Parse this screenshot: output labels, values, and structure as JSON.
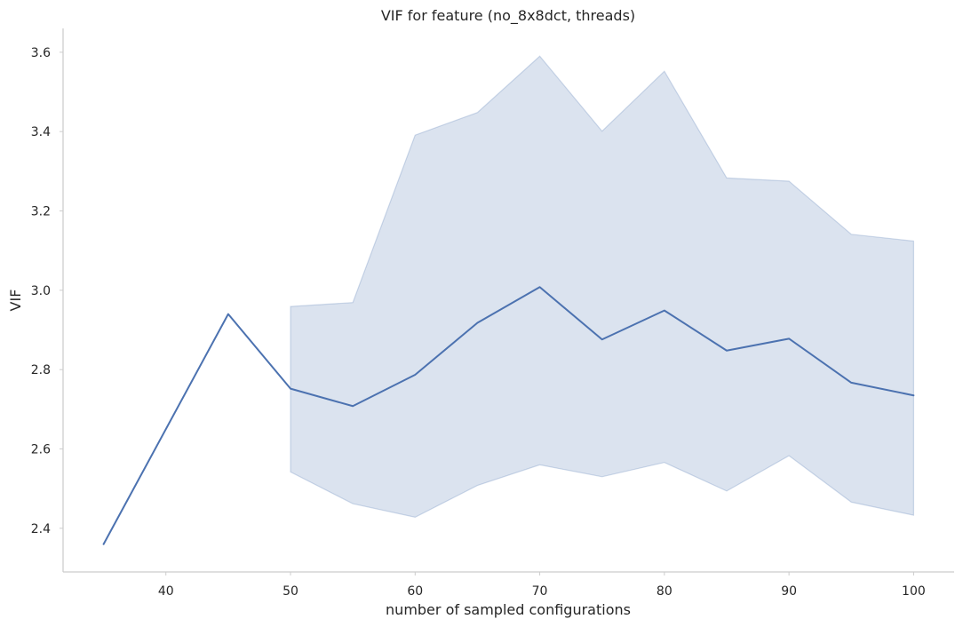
{
  "chart_data": {
    "type": "line",
    "title": "VIF for feature (no_8x8dct, threads)",
    "xlabel": "number of sampled configurations",
    "ylabel": "VIF",
    "xlim": [
      31.75,
      103.25
    ],
    "ylim": [
      2.29,
      3.66
    ],
    "xticks": [
      40,
      50,
      60,
      70,
      80,
      90,
      100
    ],
    "yticks": [
      2.4,
      2.6,
      2.8,
      3.0,
      3.2,
      3.4,
      3.6
    ],
    "ytick_labels": [
      "2.4",
      "2.6",
      "2.8",
      "3.0",
      "3.2",
      "3.4",
      "3.6"
    ],
    "grid": false,
    "line_color": "#4c72b0",
    "band_color": "#4c72b0",
    "series": [
      {
        "x": [
          35,
          45,
          50,
          55,
          60,
          65,
          70,
          75,
          80,
          85,
          90,
          95,
          100
        ],
        "values": [
          2.36,
          2.94,
          2.752,
          2.708,
          2.787,
          2.918,
          3.008,
          2.876,
          2.949,
          2.848,
          2.878,
          2.767,
          2.735
        ],
        "band_x": [
          50,
          55,
          60,
          65,
          70,
          75,
          80,
          85,
          90,
          95,
          100
        ],
        "band_lower": [
          2.542,
          2.462,
          2.428,
          2.508,
          2.56,
          2.53,
          2.566,
          2.494,
          2.583,
          2.466,
          2.433
        ],
        "band_upper": [
          2.959,
          2.969,
          3.391,
          3.448,
          3.59,
          3.401,
          3.552,
          3.283,
          3.275,
          3.141,
          3.124
        ]
      }
    ]
  }
}
